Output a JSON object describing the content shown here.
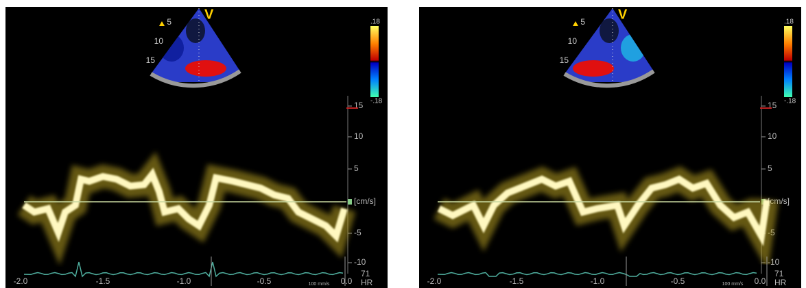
{
  "panels": [
    {
      "depth_labels": [
        "5",
        "10",
        "15"
      ],
      "view_marker": "V",
      "color_scale": {
        "max": ".18",
        "min": "-.18"
      },
      "velocity_axis": {
        "ticks": [
          "15",
          "10",
          "5",
          "-5",
          "-10"
        ],
        "unit": "[cm/s]"
      },
      "time_axis": {
        "ticks": [
          "-2.0",
          "-1.5",
          "-1.0",
          "-0.5",
          "0.0"
        ],
        "sweep_speed": "100 mm/s"
      },
      "heart_rate": {
        "value": "71",
        "label": "HR"
      }
    },
    {
      "depth_labels": [
        "5",
        "10",
        "15"
      ],
      "view_marker": "V",
      "color_scale": {
        "max": ".18",
        "min": "-.18"
      },
      "velocity_axis": {
        "ticks": [
          "15",
          "10",
          "5",
          "-5",
          "-10"
        ],
        "unit": "[cm/s]"
      },
      "time_axis": {
        "ticks": [
          "-2.0",
          "-1.5",
          "-1.0",
          "-0.5",
          "0.0"
        ],
        "sweep_speed": "100 mm/s"
      },
      "heart_rate": {
        "value": "71",
        "label": "HR"
      }
    }
  ]
}
